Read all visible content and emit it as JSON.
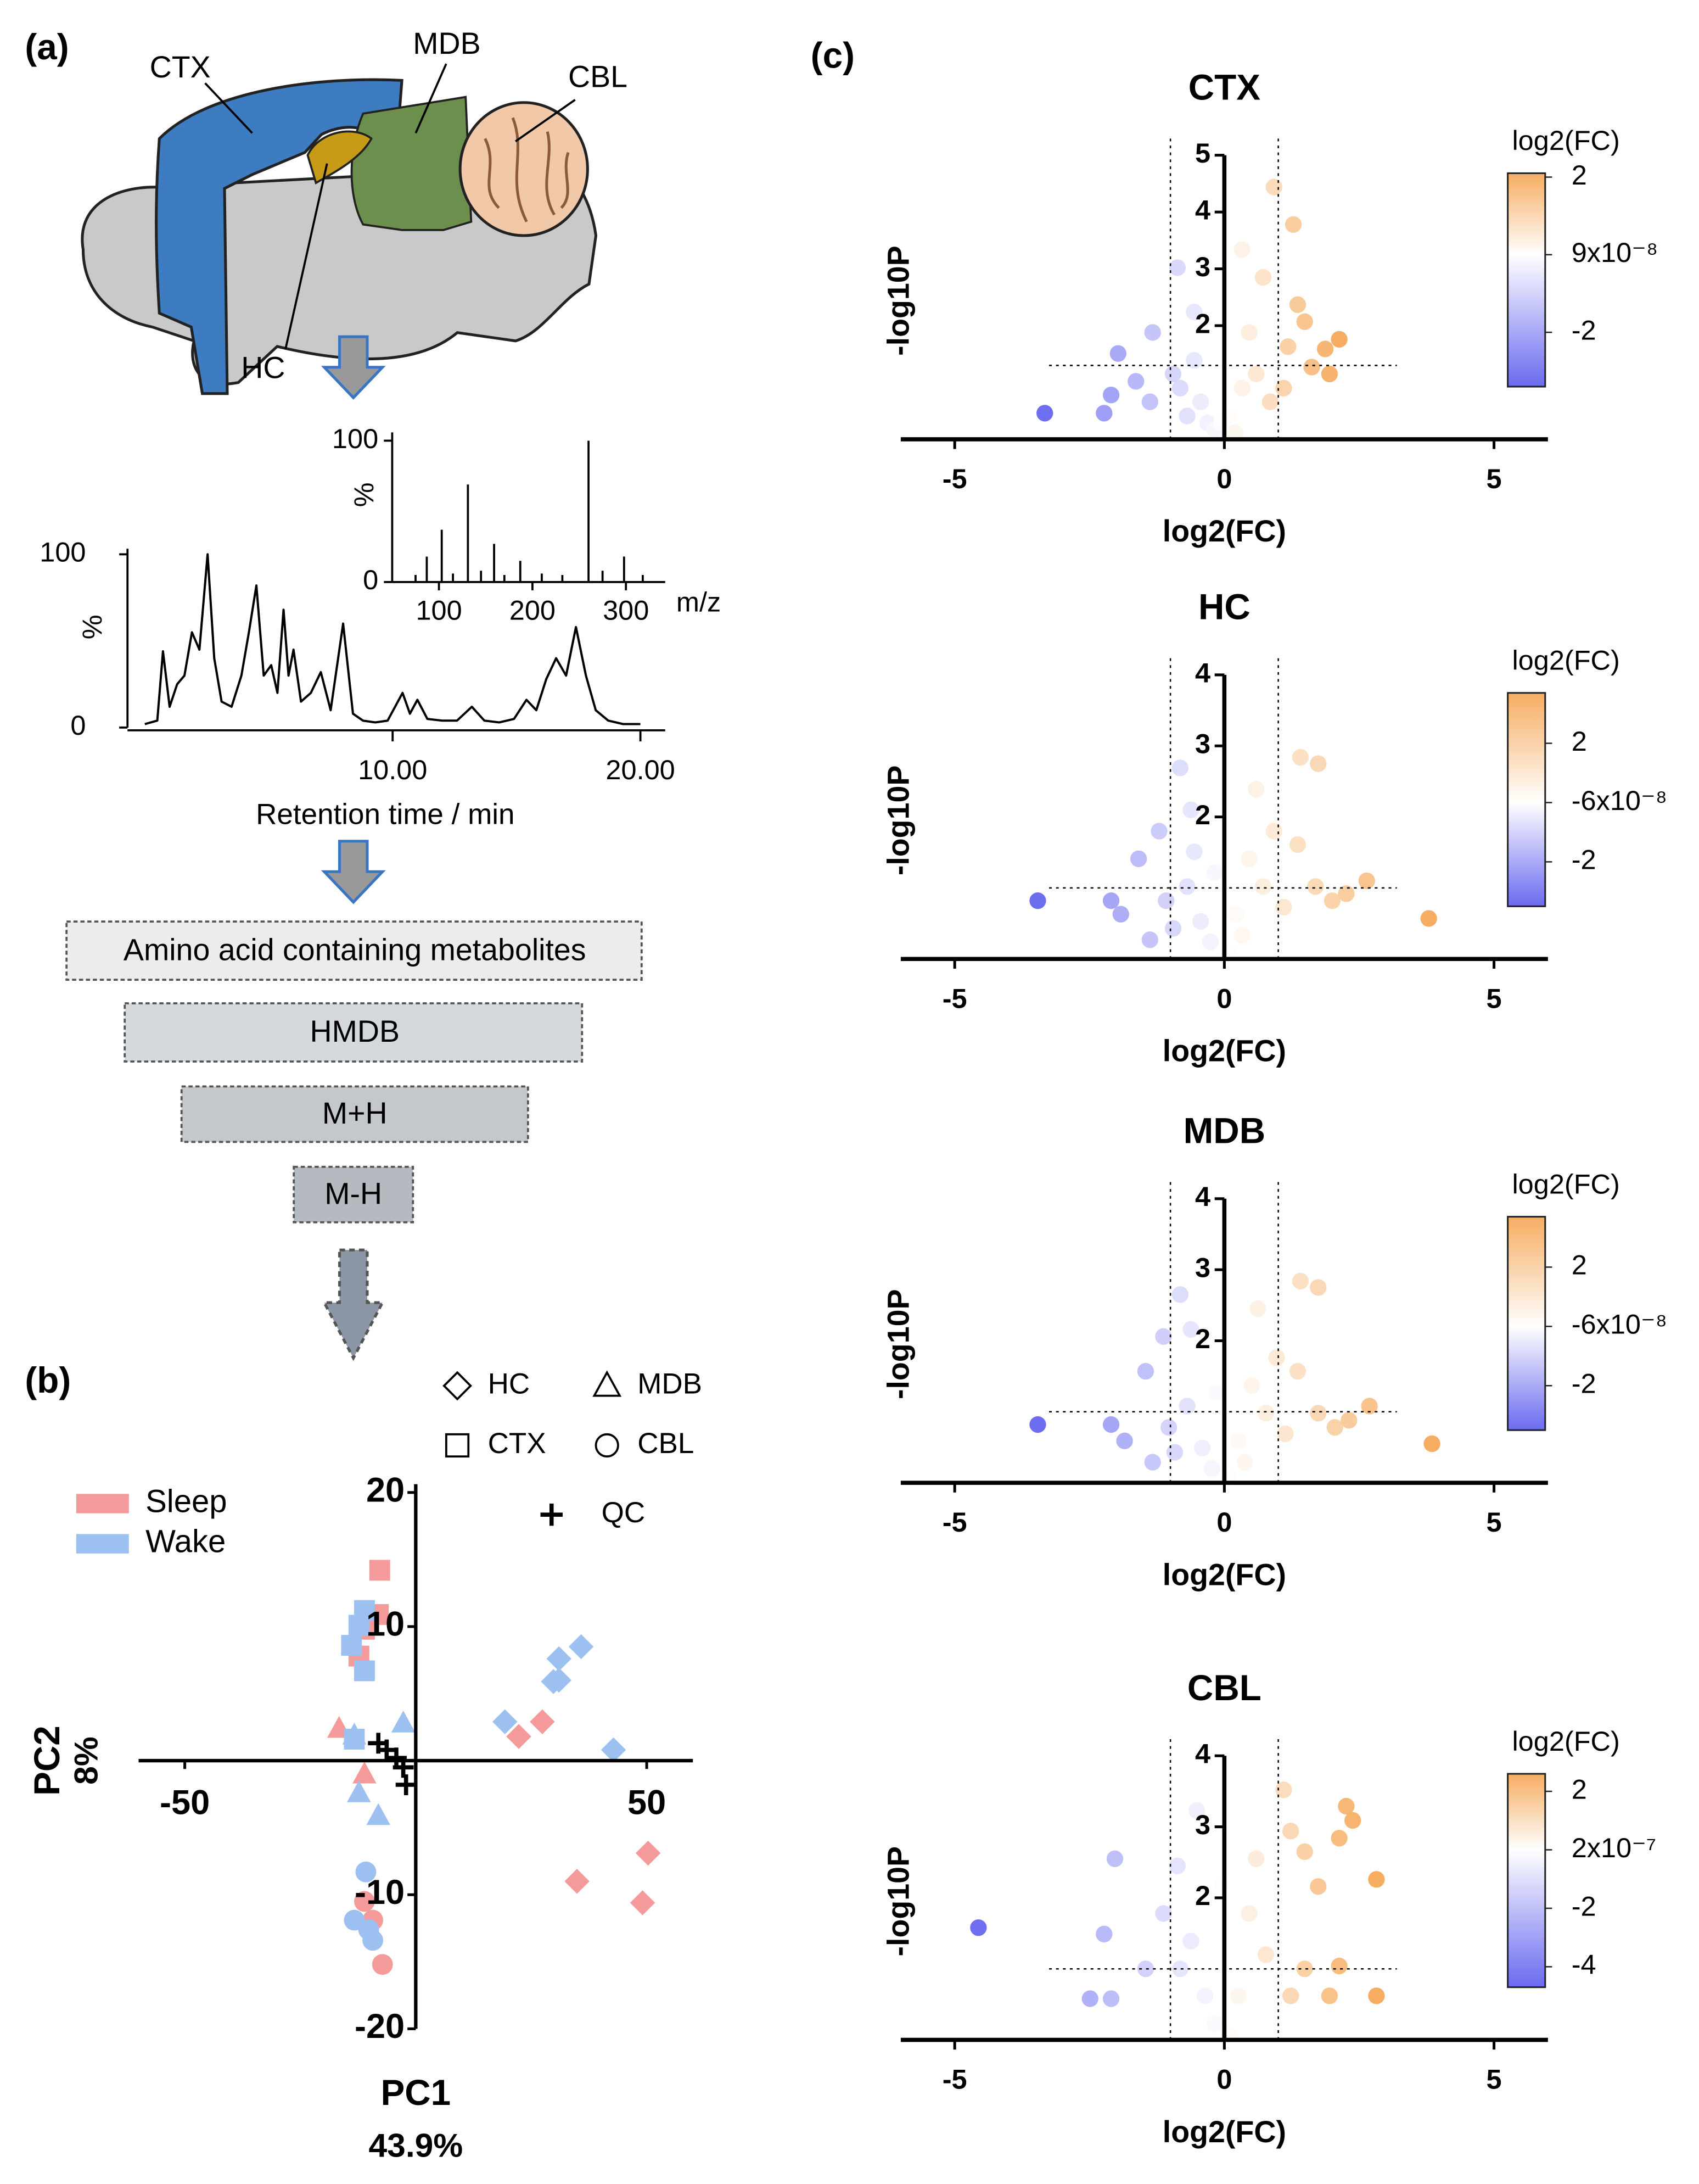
{
  "panel_labels": [
    "(a)",
    "(b)",
    "(c)"
  ],
  "diagram": {
    "regions": [
      "CTX",
      "MDB",
      "CBL",
      "HC"
    ],
    "filters": [
      "Amino acid containing metabolites",
      "HMDB",
      "M+H",
      "M-H"
    ]
  },
  "chart_data": [
    {
      "type": "bar",
      "ylabel": "%",
      "xlabel": "m/z",
      "color": "#000000",
      "x": [
        75,
        87,
        103,
        115,
        131,
        145,
        159,
        170,
        187,
        210,
        232,
        260,
        275,
        298,
        318
      ],
      "values": [
        5,
        18,
        37,
        6,
        69,
        8,
        27,
        5,
        15,
        6,
        5,
        100,
        8,
        18,
        5
      ],
      "xlim": [
        50,
        342
      ],
      "ylim": [
        0,
        100
      ],
      "xticks": [
        100,
        200,
        300
      ],
      "yticks": [
        0,
        100
      ]
    },
    {
      "type": "line",
      "ylabel": "%",
      "xlabel": "Retention time / min",
      "color": "#000000",
      "x": [
        0,
        0.5,
        0.73,
        1.0,
        1.3,
        1.6,
        1.9,
        2.2,
        2.53,
        2.8,
        3.1,
        3.5,
        3.9,
        4.2,
        4.5,
        4.8,
        5.1,
        5.35,
        5.6,
        5.8,
        6.0,
        6.3,
        6.7,
        7.1,
        7.5,
        8.0,
        8.4,
        8.8,
        9.3,
        9.8,
        10.4,
        10.7,
        11.0,
        11.4,
        12.0,
        12.6,
        13.2,
        13.7,
        14.3,
        14.9,
        15.4,
        15.8,
        16.2,
        16.6,
        17.0,
        17.4,
        17.8,
        18.2,
        18.7,
        19.3,
        20.0
      ],
      "values": [
        2,
        4,
        44,
        12,
        25,
        30,
        55,
        45,
        100,
        40,
        15,
        12,
        30,
        55,
        82,
        30,
        36,
        20,
        68,
        30,
        45,
        15,
        20,
        32,
        10,
        60,
        8,
        4,
        3,
        4,
        20,
        8,
        16,
        5,
        4,
        4,
        12,
        4,
        3,
        5,
        16,
        10,
        28,
        40,
        30,
        58,
        30,
        10,
        4,
        2,
        2
      ],
      "xlim": [
        -0.7,
        21
      ],
      "ylim": [
        0,
        100
      ],
      "xticks": [
        {
          "value": 10,
          "label": "10.00"
        },
        {
          "value": 20,
          "label": "20.00"
        }
      ],
      "yticks": [
        0,
        100
      ]
    },
    {
      "type": "scatter",
      "xlabel": "PC1",
      "xvariance": "43.9%",
      "ylabel": "PC2",
      "yvariance": "8%",
      "xlim": [
        -60,
        60
      ],
      "ylim": [
        -20,
        20
      ],
      "xticks": [
        -50,
        50
      ],
      "yticks": [
        -20,
        -10,
        10,
        20
      ],
      "shape_legend": [
        {
          "label": "HC",
          "marker": "diamond"
        },
        {
          "label": "MDB",
          "marker": "triangle"
        },
        {
          "label": "CTX",
          "marker": "square"
        },
        {
          "label": "CBL",
          "marker": "circle"
        },
        {
          "label": "QC",
          "marker": "plus"
        }
      ],
      "series": [
        {
          "name": "Sleep",
          "color": "#f49a9a",
          "x": [
            -7.8,
            -8.1,
            -12.3,
            -11.1,
            -16.6,
            -11.1,
            22.3,
            27.4,
            34.9,
            50.3,
            49.1,
            -9.3,
            -7.2,
            -11.1
          ],
          "values": [
            14.2,
            10.9,
            7.8,
            9.8,
            2.4,
            -1.0,
            1.8,
            2.9,
            -9.0,
            -6.9,
            -10.6,
            -11.9,
            -15.2,
            -10.5
          ],
          "shape": [
            "CTX",
            "CTX",
            "CTX",
            "CTX",
            "MDB",
            "MDB",
            "HC",
            "HC",
            "HC",
            "HC",
            "HC",
            "CBL",
            "CBL",
            "CBL"
          ]
        },
        {
          "name": "Wake",
          "color": "#9cc0f0",
          "x": [
            -13.9,
            -11.1,
            -11.1,
            -13.3,
            -12.3,
            -2.7,
            -12.3,
            -8.1,
            -13.3,
            19.3,
            35.8,
            31.0,
            29.8,
            31.0,
            42.8,
            -10.8,
            -13.3,
            -9.3,
            -10.2
          ],
          "values": [
            8.6,
            11.2,
            6.7,
            1.6,
            10.1,
            2.8,
            -2.4,
            -4.1,
            1.9,
            2.9,
            8.5,
            7.6,
            5.9,
            6.0,
            0.8,
            -8.3,
            -11.9,
            -13.4,
            -12.6
          ],
          "shape": [
            "CTX",
            "CTX",
            "CTX",
            "CTX",
            "CTX",
            "MDB",
            "MDB",
            "MDB",
            "MDB",
            "HC",
            "HC",
            "HC",
            "HC",
            "HC",
            "HC",
            "CBL",
            "CBL",
            "CBL",
            "CBL"
          ]
        },
        {
          "color": "#000000",
          "x": [
            -8.1,
            -6.3,
            -4.2,
            -2.7,
            -2.1
          ],
          "values": [
            1.3,
            0.8,
            0.2,
            -0.5,
            -1.8
          ],
          "shape": [
            "QC",
            "QC",
            "QC",
            "QC",
            "QC"
          ]
        }
      ]
    },
    {
      "type": "volcano",
      "title": "CTX",
      "xlabel": "log2(FC)",
      "ylabel": "-log10P",
      "colorbar_label": "log2(FC)",
      "xlim": [
        -6,
        6
      ],
      "ylim": [
        0,
        5
      ],
      "xticks": [
        -5,
        0,
        5
      ],
      "yticks": [
        2,
        3,
        4,
        5
      ],
      "thresholds": {
        "x": [
          -1,
          1
        ],
        "y": 1.3
      },
      "colormap": [
        "#6b6bf0",
        "#ffffff",
        "#f6ad62"
      ],
      "clim": [
        -3.4,
        2.1
      ],
      "cticks": [
        2,
        {
          "value": 9e-08,
          "label": "9x10⁻⁸"
        },
        -2
      ],
      "x": [
        -3.33,
        -2.23,
        -2.1,
        -1.97,
        -1.64,
        -1.33,
        -0.87,
        -0.56,
        -1.38,
        -0.95,
        -0.69,
        -0.44,
        -0.31,
        -0.18,
        -0.56,
        0.2,
        0.33,
        0.46,
        0.59,
        0.72,
        0.85,
        0.92,
        1.28,
        1.18,
        1.49,
        1.62,
        1.87,
        2.13,
        1.95,
        1.1,
        1.36,
        0.08,
        -0.05,
        0.33,
        -0.82
      ],
      "values": [
        0.46,
        0.46,
        0.78,
        1.51,
        1.02,
        1.88,
        3.02,
        2.24,
        0.66,
        1.15,
        0.41,
        0.66,
        0.29,
        0.17,
        1.39,
        0.12,
        3.34,
        1.88,
        1.15,
        2.85,
        0.66,
        4.44,
        3.78,
        1.63,
        2.07,
        1.27,
        1.59,
        1.76,
        1.15,
        0.9,
        2.37,
        0.41,
        0.29,
        0.9,
        0.9
      ]
    },
    {
      "type": "volcano",
      "title": "HC",
      "xlabel": "log2(FC)",
      "ylabel": "-log10P",
      "colorbar_label": "log2(FC)",
      "xlim": [
        -6,
        6
      ],
      "ylim": [
        0,
        4
      ],
      "xticks": [
        -5,
        0,
        5
      ],
      "yticks": [
        2,
        3,
        4
      ],
      "thresholds": {
        "x": [
          -1,
          1
        ],
        "y": 1.0
      },
      "colormap": [
        "#6b6bf0",
        "#ffffff",
        "#f6ad62"
      ],
      "clim": [
        -3.5,
        3.7
      ],
      "cticks": [
        2,
        {
          "value": -6e-08,
          "label": "-6x10⁻⁸"
        },
        -2
      ],
      "x": [
        -3.46,
        -2.1,
        -1.92,
        -1.59,
        -1.21,
        -0.82,
        -0.62,
        -1.38,
        -1.08,
        -0.69,
        -0.44,
        -0.26,
        -0.56,
        0.08,
        0.21,
        0.46,
        0.59,
        0.72,
        0.92,
        1.41,
        1.74,
        1.36,
        1.69,
        2.0,
        2.26,
        2.64,
        3.79,
        1.1,
        0.33,
        -0.95,
        -0.18
      ],
      "values": [
        0.82,
        0.82,
        0.63,
        1.41,
        1.8,
        2.69,
        2.1,
        0.27,
        0.82,
        1.02,
        0.53,
        0.24,
        1.51,
        0.08,
        0.63,
        1.41,
        2.39,
        1.02,
        1.8,
        2.84,
        2.75,
        1.61,
        1.02,
        0.82,
        0.92,
        1.1,
        0.57,
        0.73,
        0.33,
        0.43,
        1.22
      ]
    },
    {
      "type": "volcano",
      "title": "MDB",
      "xlabel": "log2(FC)",
      "ylabel": "-log10P",
      "colorbar_label": "log2(FC)",
      "xlim": [
        -6,
        6
      ],
      "ylim": [
        0,
        4
      ],
      "xticks": [
        -5,
        0,
        5
      ],
      "yticks": [
        2,
        3,
        4
      ],
      "thresholds": {
        "x": [
          -1,
          1
        ],
        "y": 1.0
      },
      "colormap": [
        "#6b6bf0",
        "#ffffff",
        "#f6ad62"
      ],
      "clim": [
        -3.5,
        3.7
      ],
      "cticks": [
        2,
        {
          "value": -6e-08,
          "label": "-6x10⁻⁸"
        },
        -2
      ],
      "x": [
        -3.46,
        -2.1,
        -1.85,
        -1.46,
        -1.13,
        -0.82,
        -0.62,
        -1.33,
        -1.03,
        -0.69,
        -0.41,
        -0.23,
        0.08,
        0.26,
        0.51,
        0.62,
        0.77,
        0.97,
        1.41,
        1.74,
        1.36,
        1.74,
        2.05,
        2.31,
        2.69,
        3.85,
        1.13,
        0.38,
        -0.92,
        -0.15
      ],
      "values": [
        0.82,
        0.82,
        0.59,
        1.57,
        2.06,
        2.65,
        2.16,
        0.29,
        0.78,
        1.08,
        0.49,
        0.2,
        0.08,
        0.59,
        1.37,
        2.45,
        0.98,
        1.76,
        2.84,
        2.75,
        1.57,
        0.98,
        0.78,
        0.88,
        1.08,
        0.55,
        0.69,
        0.29,
        0.43,
        1.27
      ]
    },
    {
      "type": "volcano",
      "title": "CBL",
      "xlabel": "log2(FC)",
      "ylabel": "-log10P",
      "colorbar_label": "log2(FC)",
      "xlim": [
        -6,
        6
      ],
      "ylim": [
        0,
        4
      ],
      "xticks": [
        -5,
        0,
        5
      ],
      "yticks": [
        2,
        3,
        4
      ],
      "thresholds": {
        "x": [
          -1,
          1
        ],
        "y": 1.0
      },
      "colormap": [
        "#6b6bf0",
        "#ffffff",
        "#f6ad62"
      ],
      "clim": [
        -4.7,
        2.6
      ],
      "cticks": [
        2,
        {
          "value": 2e-07,
          "label": "2x10⁻⁷"
        },
        -2,
        -4
      ],
      "x": [
        -4.56,
        -2.49,
        -2.1,
        -2.23,
        -2.03,
        -1.46,
        -1.13,
        -0.87,
        -0.51,
        -0.62,
        -0.36,
        -0.18,
        0.08,
        0.26,
        0.46,
        0.59,
        0.77,
        1.1,
        1.23,
        1.49,
        1.74,
        2.13,
        2.26,
        2.38,
        2.82,
        2.82,
        2.13,
        1.49,
        1.23,
        1.95,
        -0.82,
        -0.05
      ],
      "values": [
        1.58,
        0.58,
        0.58,
        1.49,
        2.55,
        1.0,
        1.78,
        2.45,
        3.23,
        1.39,
        0.62,
        0.23,
        0.08,
        0.62,
        1.78,
        2.55,
        1.2,
        3.52,
        2.94,
        2.65,
        2.16,
        2.84,
        3.29,
        3.09,
        2.26,
        0.62,
        1.04,
        1.0,
        0.62,
        0.62,
        1.0,
        2.16
      ]
    }
  ]
}
